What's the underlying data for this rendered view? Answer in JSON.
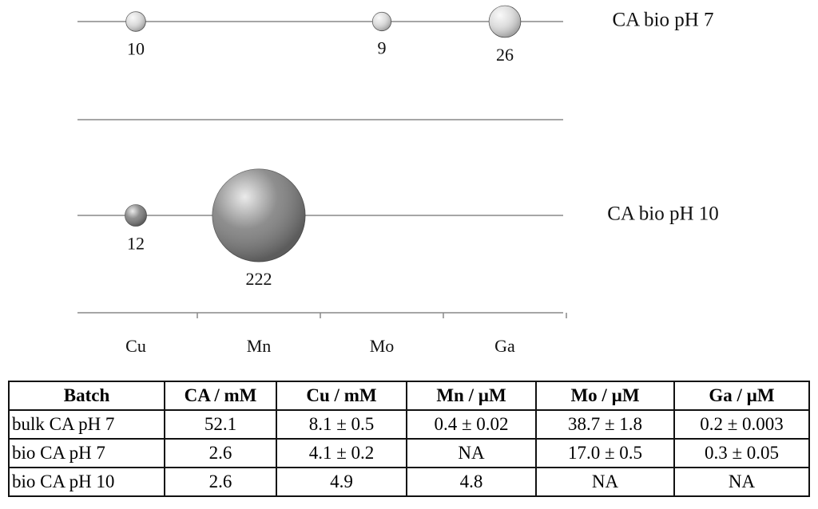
{
  "chart_data": {
    "type": "bubble",
    "categories": [
      "Cu",
      "Mn",
      "Mo",
      "Ga"
    ],
    "series": [
      {
        "name": "CA bio pH 7",
        "color": "#d9d9d9",
        "values": [
          10,
          null,
          9,
          26
        ]
      },
      {
        "name": "CA bio pH 10",
        "color": "#7a7a7a",
        "values": [
          12,
          222,
          null,
          null
        ]
      }
    ]
  },
  "table": {
    "header": [
      "Batch",
      "CA / mM",
      "Cu / mM",
      "Mn / µM",
      "Mo / µM",
      "Ga / µM"
    ],
    "rows": [
      [
        "bulk CA pH 7",
        "52.1",
        "8.1 ± 0.5",
        "0.4 ± 0.02",
        "38.7 ± 1.8",
        "0.2 ± 0.003"
      ],
      [
        "bio CA pH 7",
        "2.6",
        "4.1 ± 0.2",
        "NA",
        "17.0 ± 0.5",
        "0.3 ± 0.05"
      ],
      [
        "bio CA pH 10",
        "2.6",
        "4.9",
        "4.8",
        "NA",
        "NA"
      ]
    ]
  }
}
